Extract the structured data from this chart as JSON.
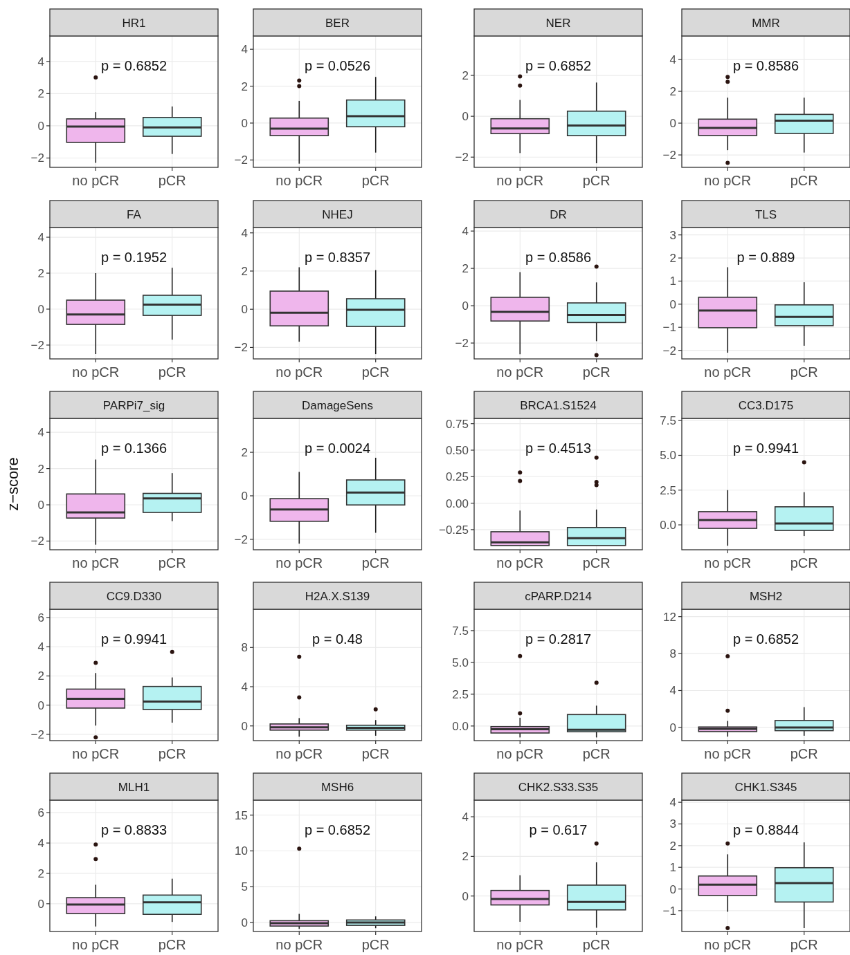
{
  "chart_data": [
    {
      "type": "box",
      "title": "HR1",
      "categories": [
        "no pCR",
        "pCR"
      ],
      "colors": [
        "#efb6ec",
        "#b5f2f2"
      ],
      "ylim": [
        -2.58,
        5.58
      ],
      "yticks": [
        -2,
        0,
        2,
        4
      ],
      "grid": true,
      "marker": "circle",
      "annotations": [
        "p = 0.6852"
      ],
      "boxes": [
        {
          "low": -2.3,
          "q1": -1.03,
          "median": -0.05,
          "q3": 0.43,
          "high": 0.85
        },
        {
          "low": -1.75,
          "q1": -0.65,
          "median": -0.1,
          "q3": 0.52,
          "high": 1.2
        }
      ],
      "series": [
        {
          "type": "scatter",
          "color": "#2a1410",
          "x": [
            "no pCR"
          ],
          "values": [
            3.0
          ]
        }
      ]
    },
    {
      "type": "box",
      "title": "BER",
      "categories": [
        "no pCR",
        "pCR"
      ],
      "colors": [
        "#efb6ec",
        "#b5f2f2"
      ],
      "ylim": [
        -2.4,
        4.72
      ],
      "yticks": [
        -2,
        0,
        2,
        4
      ],
      "grid": true,
      "marker": "circle",
      "annotations": [
        "p = 0.0526"
      ],
      "boxes": [
        {
          "low": -2.2,
          "q1": -0.68,
          "median": -0.3,
          "q3": 0.27,
          "high": 1.2
        },
        {
          "low": -1.6,
          "q1": -0.2,
          "median": 0.37,
          "q3": 1.25,
          "high": 2.5
        }
      ],
      "series": [
        {
          "type": "scatter",
          "color": "#2a1410",
          "x": [
            "no pCR",
            "no pCR"
          ],
          "values": [
            2.0,
            2.3
          ]
        }
      ]
    },
    {
      "type": "box",
      "title": "NER",
      "categories": [
        "no pCR",
        "pCR"
      ],
      "colors": [
        "#efb6ec",
        "#b5f2f2"
      ],
      "ylim": [
        -2.5,
        3.93
      ],
      "yticks": [
        -2,
        0,
        2
      ],
      "grid": true,
      "marker": "circle",
      "annotations": [
        "p = 0.6852"
      ],
      "boxes": [
        {
          "low": -1.8,
          "q1": -0.85,
          "median": -0.6,
          "q3": -0.12,
          "high": 0.8
        },
        {
          "low": -2.3,
          "q1": -0.95,
          "median": -0.45,
          "q3": 0.25,
          "high": 1.65
        }
      ],
      "series": [
        {
          "type": "scatter",
          "color": "#2a1410",
          "x": [
            "no pCR",
            "no pCR"
          ],
          "values": [
            1.5,
            1.95
          ]
        }
      ]
    },
    {
      "type": "box",
      "title": "MMR",
      "categories": [
        "no pCR",
        "pCR"
      ],
      "colors": [
        "#efb6ec",
        "#b5f2f2"
      ],
      "ylim": [
        -2.78,
        5.48
      ],
      "yticks": [
        -2,
        0,
        2,
        4
      ],
      "grid": true,
      "marker": "circle",
      "annotations": [
        "p = 0.8586"
      ],
      "boxes": [
        {
          "low": -1.7,
          "q1": -0.78,
          "median": -0.3,
          "q3": 0.25,
          "high": 1.6
        },
        {
          "low": -1.85,
          "q1": -0.65,
          "median": 0.15,
          "q3": 0.55,
          "high": 1.6
        }
      ],
      "series": [
        {
          "type": "scatter",
          "color": "#2a1410",
          "x": [
            "no pCR",
            "no pCR",
            "no pCR"
          ],
          "values": [
            -2.5,
            2.6,
            2.9
          ]
        }
      ]
    },
    {
      "type": "box",
      "title": "FA",
      "categories": [
        "no pCR",
        "pCR"
      ],
      "colors": [
        "#efb6ec",
        "#b5f2f2"
      ],
      "ylim": [
        -2.77,
        4.54
      ],
      "yticks": [
        -2,
        0,
        2,
        4
      ],
      "grid": true,
      "annotations": [
        "p = 0.1952"
      ],
      "boxes": [
        {
          "low": -2.5,
          "q1": -0.85,
          "median": -0.3,
          "q3": 0.5,
          "high": 2.0
        },
        {
          "low": -1.7,
          "q1": -0.35,
          "median": 0.25,
          "q3": 0.77,
          "high": 2.3
        }
      ]
    },
    {
      "type": "box",
      "title": "NHEJ",
      "categories": [
        "no pCR",
        "pCR"
      ],
      "colors": [
        "#efb6ec",
        "#b5f2f2"
      ],
      "ylim": [
        -2.6,
        4.28
      ],
      "yticks": [
        -2,
        0,
        2,
        4
      ],
      "grid": true,
      "annotations": [
        "p = 0.8357"
      ],
      "boxes": [
        {
          "low": -1.7,
          "q1": -0.87,
          "median": -0.18,
          "q3": 0.95,
          "high": 2.2
        },
        {
          "low": -2.35,
          "q1": -0.9,
          "median": -0.03,
          "q3": 0.55,
          "high": 2.05
        }
      ]
    },
    {
      "type": "box",
      "title": "DR",
      "categories": [
        "no pCR",
        "pCR"
      ],
      "colors": [
        "#efb6ec",
        "#b5f2f2"
      ],
      "ylim": [
        -2.85,
        4.19
      ],
      "yticks": [
        -2,
        0,
        2,
        4
      ],
      "grid": true,
      "marker": "circle",
      "annotations": [
        "p = 0.8586"
      ],
      "boxes": [
        {
          "low": -2.6,
          "q1": -0.82,
          "median": -0.33,
          "q3": 0.45,
          "high": 1.8
        },
        {
          "low": -1.9,
          "q1": -0.9,
          "median": -0.5,
          "q3": 0.15,
          "high": 1.25
        }
      ],
      "series": [
        {
          "type": "scatter",
          "color": "#2a1410",
          "x": [
            "pCR",
            "pCR"
          ],
          "values": [
            -2.65,
            2.1
          ]
        }
      ]
    },
    {
      "type": "box",
      "title": "TLS",
      "categories": [
        "no pCR",
        "pCR"
      ],
      "colors": [
        "#efb6ec",
        "#b5f2f2"
      ],
      "ylim": [
        -2.37,
        3.32
      ],
      "yticks": [
        -2,
        -1,
        0,
        1,
        2,
        3
      ],
      "grid": true,
      "annotations": [
        "p = 0.889"
      ],
      "boxes": [
        {
          "low": -2.1,
          "q1": -1.02,
          "median": -0.27,
          "q3": 0.3,
          "high": 1.6
        },
        {
          "low": -1.8,
          "q1": -0.93,
          "median": -0.55,
          "q3": -0.03,
          "high": 0.95
        }
      ]
    },
    {
      "type": "box",
      "title": "PARPi7_sig",
      "ylabel": "z−score",
      "categories": [
        "no pCR",
        "pCR"
      ],
      "colors": [
        "#efb6ec",
        "#b5f2f2"
      ],
      "ylim": [
        -2.48,
        4.77
      ],
      "yticks": [
        -2,
        0,
        2,
        4
      ],
      "grid": true,
      "annotations": [
        "p = 0.1366"
      ],
      "boxes": [
        {
          "low": -2.2,
          "q1": -0.73,
          "median": -0.42,
          "q3": 0.6,
          "high": 2.5
        },
        {
          "low": -0.9,
          "q1": -0.42,
          "median": 0.35,
          "q3": 0.63,
          "high": 1.75
        }
      ]
    },
    {
      "type": "box",
      "title": "DamageSens",
      "categories": [
        "no pCR",
        "pCR"
      ],
      "colors": [
        "#efb6ec",
        "#b5f2f2"
      ],
      "ylim": [
        -2.48,
        3.56
      ],
      "yticks": [
        -2,
        0,
        2
      ],
      "grid": true,
      "annotations": [
        "p = 0.0024"
      ],
      "boxes": [
        {
          "low": -2.2,
          "q1": -1.17,
          "median": -0.63,
          "q3": -0.13,
          "high": 1.1
        },
        {
          "low": -1.7,
          "q1": -0.42,
          "median": 0.15,
          "q3": 0.73,
          "high": 1.75
        }
      ]
    },
    {
      "type": "box",
      "title": "BRCA1.S1524",
      "categories": [
        "no pCR",
        "pCR"
      ],
      "colors": [
        "#efb6ec",
        "#b5f2f2"
      ],
      "ylim": [
        -0.44,
        0.8
      ],
      "yticks": [
        {
          "value": -0.25,
          "label": "−0.25"
        },
        {
          "value": 0,
          "label": "0.00"
        },
        0.25,
        {
          "value": 0.5,
          "label": "0.50"
        },
        0.75
      ],
      "grid": true,
      "marker": "circle",
      "annotations": [
        "p = 0.4513"
      ],
      "boxes": [
        {
          "low": -0.4,
          "q1": -0.4,
          "median": -0.37,
          "q3": -0.27,
          "high": -0.07
        },
        {
          "low": -0.4,
          "q1": -0.4,
          "median": -0.33,
          "q3": -0.23,
          "high": -0.06
        }
      ],
      "series": [
        {
          "type": "scatter",
          "color": "#2a1410",
          "x": [
            "no pCR",
            "no pCR",
            "pCR",
            "pCR",
            "pCR"
          ],
          "values": [
            0.21,
            0.29,
            0.17,
            0.2,
            0.43
          ]
        }
      ]
    },
    {
      "type": "box",
      "title": "CC3.D175",
      "categories": [
        "no pCR",
        "pCR"
      ],
      "colors": [
        "#efb6ec",
        "#b5f2f2"
      ],
      "ylim": [
        -1.79,
        7.66
      ],
      "yticks": [
        {
          "value": 0,
          "label": "0.0"
        },
        2.5,
        {
          "value": 5,
          "label": "5.0"
        },
        7.5
      ],
      "grid": true,
      "marker": "circle",
      "annotations": [
        "p = 0.9941"
      ],
      "boxes": [
        {
          "low": -1.5,
          "q1": -0.25,
          "median": 0.35,
          "q3": 0.95,
          "high": 2.5
        },
        {
          "low": -0.8,
          "q1": -0.4,
          "median": 0.1,
          "q3": 1.3,
          "high": 2.35
        }
      ],
      "series": [
        {
          "type": "scatter",
          "color": "#2a1410",
          "x": [
            "pCR"
          ],
          "values": [
            4.5
          ]
        }
      ]
    },
    {
      "type": "box",
      "title": "CC9.D330",
      "categories": [
        "no pCR",
        "pCR"
      ],
      "colors": [
        "#efb6ec",
        "#b5f2f2"
      ],
      "ylim": [
        -2.43,
        6.57
      ],
      "yticks": [
        -2,
        0,
        2,
        4,
        6
      ],
      "grid": true,
      "marker": "circle",
      "annotations": [
        "p = 0.9941"
      ],
      "boxes": [
        {
          "low": -1.4,
          "q1": -0.2,
          "median": 0.43,
          "q3": 1.1,
          "high": 2.2
        },
        {
          "low": -1.2,
          "q1": -0.3,
          "median": 0.25,
          "q3": 1.28,
          "high": 1.9
        }
      ],
      "series": [
        {
          "type": "scatter",
          "color": "#2a1410",
          "x": [
            "no pCR",
            "no pCR",
            "pCR"
          ],
          "values": [
            -2.2,
            2.9,
            3.65
          ]
        }
      ]
    },
    {
      "type": "box",
      "title": "H2A.X.S139",
      "categories": [
        "no pCR",
        "pCR"
      ],
      "colors": [
        "#efb6ec",
        "#b5f2f2"
      ],
      "ylim": [
        -1.5,
        11.9
      ],
      "yticks": [
        0,
        4,
        8
      ],
      "grid": true,
      "marker": "circle",
      "annotations": [
        "p = 0.48"
      ],
      "boxes": [
        {
          "low": -1.1,
          "q1": -0.43,
          "median": -0.15,
          "q3": 0.2,
          "high": 0.8
        },
        {
          "low": -1.0,
          "q1": -0.43,
          "median": -0.2,
          "q3": 0.07,
          "high": 0.6
        }
      ],
      "series": [
        {
          "type": "scatter",
          "color": "#2a1410",
          "x": [
            "no pCR",
            "no pCR",
            "pCR"
          ],
          "values": [
            2.9,
            7.05,
            1.7
          ]
        }
      ]
    },
    {
      "type": "box",
      "title": "cPARP.D214",
      "categories": [
        "no pCR",
        "pCR"
      ],
      "colors": [
        "#efb6ec",
        "#b5f2f2"
      ],
      "ylim": [
        -1.15,
        9.18
      ],
      "yticks": [
        {
          "value": 0,
          "label": "0.0"
        },
        2.5,
        {
          "value": 5,
          "label": "5.0"
        },
        7.5
      ],
      "grid": true,
      "marker": "circle",
      "annotations": [
        "p = 0.2817"
      ],
      "boxes": [
        {
          "low": -0.9,
          "q1": -0.55,
          "median": -0.25,
          "q3": -0.05,
          "high": 0.65
        },
        {
          "low": -0.9,
          "q1": -0.45,
          "median": -0.3,
          "q3": 0.9,
          "high": 1.6
        }
      ],
      "series": [
        {
          "type": "scatter",
          "color": "#2a1410",
          "x": [
            "no pCR",
            "no pCR",
            "pCR"
          ],
          "values": [
            1.0,
            5.5,
            3.4
          ]
        }
      ]
    },
    {
      "type": "box",
      "title": "MSH2",
      "categories": [
        "no pCR",
        "pCR"
      ],
      "colors": [
        "#efb6ec",
        "#b5f2f2"
      ],
      "ylim": [
        -1.43,
        12.8
      ],
      "yticks": [
        0,
        4,
        8,
        12
      ],
      "grid": true,
      "marker": "circle",
      "annotations": [
        "p = 0.6852"
      ],
      "boxes": [
        {
          "low": -1.0,
          "q1": -0.45,
          "median": -0.15,
          "q3": 0.05,
          "high": 0.7
        },
        {
          "low": -0.9,
          "q1": -0.35,
          "median": 0.0,
          "q3": 0.75,
          "high": 2.2
        }
      ],
      "series": [
        {
          "type": "scatter",
          "color": "#2a1410",
          "x": [
            "no pCR",
            "no pCR"
          ],
          "values": [
            1.8,
            7.7
          ]
        }
      ]
    },
    {
      "type": "box",
      "title": "MLH1",
      "categories": [
        "no pCR",
        "pCR"
      ],
      "colors": [
        "#efb6ec",
        "#b5f2f2"
      ],
      "ylim": [
        -1.83,
        6.83
      ],
      "yticks": [
        0,
        2,
        4,
        6
      ],
      "grid": true,
      "marker": "circle",
      "annotations": [
        "p = 0.8833"
      ],
      "boxes": [
        {
          "low": -1.5,
          "q1": -0.65,
          "median": -0.05,
          "q3": 0.4,
          "high": 1.25
        },
        {
          "low": -1.2,
          "q1": -0.7,
          "median": 0.1,
          "q3": 0.57,
          "high": 1.65
        }
      ],
      "series": [
        {
          "type": "scatter",
          "color": "#2a1410",
          "x": [
            "no pCR",
            "no pCR"
          ],
          "values": [
            2.95,
            3.9
          ]
        }
      ]
    },
    {
      "type": "box",
      "title": "MSH6",
      "categories": [
        "no pCR",
        "pCR"
      ],
      "colors": [
        "#efb6ec",
        "#b5f2f2"
      ],
      "ylim": [
        -1.26,
        17.1
      ],
      "yticks": [
        0,
        5,
        10,
        15
      ],
      "grid": true,
      "marker": "circle",
      "annotations": [
        "p = 0.6852"
      ],
      "boxes": [
        {
          "low": -0.9,
          "q1": -0.5,
          "median": -0.1,
          "q3": 0.25,
          "high": 1.2
        },
        {
          "low": -0.8,
          "q1": -0.4,
          "median": 0.0,
          "q3": 0.35,
          "high": 0.85
        }
      ],
      "series": [
        {
          "type": "scatter",
          "color": "#2a1410",
          "x": [
            "no pCR"
          ],
          "values": [
            10.3
          ]
        }
      ]
    },
    {
      "type": "box",
      "title": "CHK2.S33.S35",
      "categories": [
        "no pCR",
        "pCR"
      ],
      "colors": [
        "#efb6ec",
        "#b5f2f2"
      ],
      "ylim": [
        -1.79,
        4.84
      ],
      "yticks": [
        0,
        2,
        4
      ],
      "grid": true,
      "marker": "circle",
      "annotations": [
        "p = 0.617"
      ],
      "boxes": [
        {
          "low": -1.3,
          "q1": -0.45,
          "median": -0.15,
          "q3": 0.28,
          "high": 1.05
        },
        {
          "low": -1.6,
          "q1": -0.7,
          "median": -0.3,
          "q3": 0.55,
          "high": 1.7
        }
      ],
      "series": [
        {
          "type": "scatter",
          "color": "#2a1410",
          "x": [
            "pCR"
          ],
          "values": [
            2.65
          ]
        }
      ]
    },
    {
      "type": "box",
      "title": "CHK1.S345",
      "categories": [
        "no pCR",
        "pCR"
      ],
      "colors": [
        "#efb6ec",
        "#b5f2f2"
      ],
      "ylim": [
        -1.96,
        4.1
      ],
      "yticks": [
        -1,
        0,
        1,
        2,
        3,
        4
      ],
      "grid": true,
      "marker": "circle",
      "annotations": [
        "p = 0.8844"
      ],
      "boxes": [
        {
          "low": -1.05,
          "q1": -0.3,
          "median": 0.2,
          "q3": 0.6,
          "high": 1.6
        },
        {
          "low": -1.8,
          "q1": -0.6,
          "median": 0.27,
          "q3": 0.98,
          "high": 2.15
        }
      ],
      "series": [
        {
          "type": "scatter",
          "color": "#2a1410",
          "x": [
            "no pCR",
            "no pCR"
          ],
          "values": [
            -1.8,
            2.1
          ]
        }
      ]
    }
  ]
}
